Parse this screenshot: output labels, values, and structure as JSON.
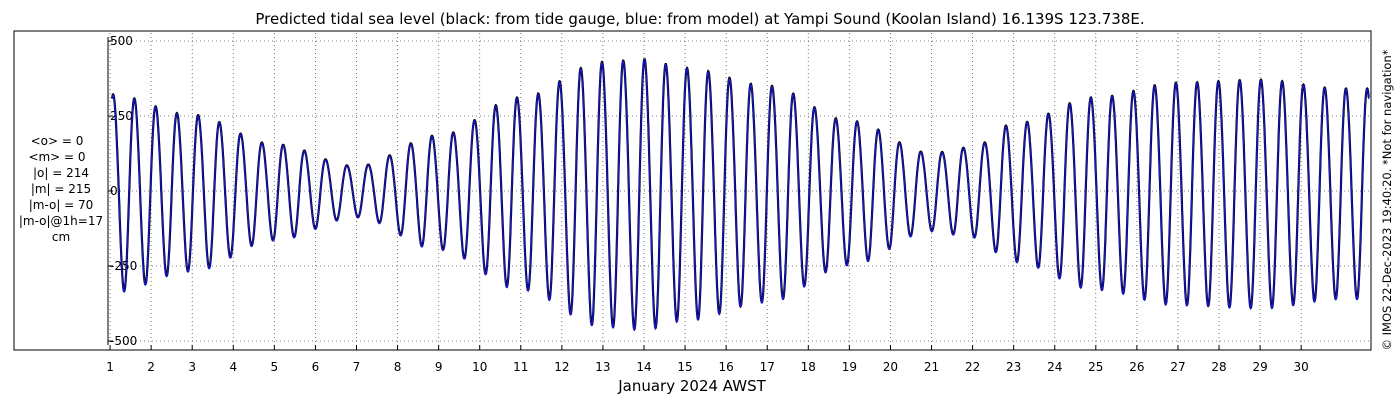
{
  "chart_data": {
    "type": "line",
    "title": "Predicted tidal sea level (black: from tide gauge, blue: from model) at Yampi Sound (Koolan Island) 16.139S 123.738E.",
    "xlabel": "January 2024 AWST",
    "ylabel": "",
    "ylim": [
      -520,
      520
    ],
    "xlim_days": [
      0.95,
      31.7
    ],
    "y_ticks": [
      -500,
      -250,
      0,
      250,
      500
    ],
    "y_tick_labels": [
      "-500",
      "-250",
      "0",
      "250",
      "500"
    ],
    "x_ticks": [
      1,
      2,
      3,
      4,
      5,
      6,
      7,
      8,
      9,
      10,
      11,
      12,
      13,
      14,
      15,
      16,
      17,
      18,
      19,
      20,
      21,
      22,
      23,
      24,
      25,
      26,
      27,
      28,
      29,
      30
    ],
    "x_tick_labels": [
      "1",
      "2",
      "3",
      "4",
      "5",
      "6",
      "7",
      "8",
      "9",
      "10",
      "11",
      "12",
      "13",
      "14",
      "15",
      "16",
      "17",
      "18",
      "19",
      "20",
      "21",
      "22",
      "23",
      "24",
      "25",
      "26",
      "27",
      "28",
      "29",
      "30"
    ],
    "grid": true,
    "series": [
      {
        "name": "from tide gauge",
        "color": "#000000",
        "tide_envelope": {
          "day": [
            1,
            3,
            5,
            7,
            9,
            11,
            13,
            14,
            15,
            17,
            19,
            21,
            22,
            23,
            25,
            27,
            29,
            31
          ],
          "amplitude_cm": [
            330,
            260,
            160,
            85,
            190,
            320,
            440,
            450,
            420,
            360,
            240,
            130,
            150,
            230,
            320,
            370,
            380,
            350
          ]
        }
      },
      {
        "name": "from model",
        "color": "#1515d0"
      }
    ],
    "stats": {
      "lines": [
        "<o> = 0",
        "<m> = 0",
        "|o| = 214",
        "|m| = 215",
        "|m-o| = 70",
        "|m-o|@1h=17",
        "cm"
      ]
    },
    "side_note": "© IMOS 22-Dec-2023 19:40:20. *Not for navigation*"
  }
}
